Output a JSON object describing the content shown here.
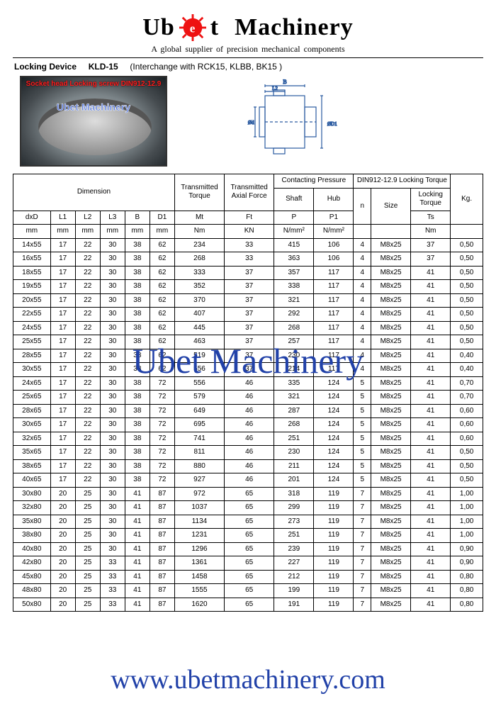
{
  "brand": {
    "left": "Ub",
    "right": "t",
    "word2": "Machinery"
  },
  "tagline": "A global supplier of precision mechanical components",
  "title": {
    "label": "Locking Device",
    "model": "KLD-15",
    "note": "(Interchange with RCK15,    KLBB,   BK15 )"
  },
  "photo_label": "Socket head Locking screw DIN912-12.9",
  "photo_wm": "Ubet Machinery",
  "watermark": "Ubet Machinery",
  "url": "www.ubetmachinery.com",
  "headers": {
    "dimension": "Dimension",
    "mt_group": "Transmitted Torque",
    "ft_group": "Transmitted Axial Force",
    "cp_group": "Contacting Pressure",
    "din_group": "DIN912-12.9 Locking Torque",
    "shaft": "Shaft",
    "hub": "Hub",
    "n": "n",
    "size": "Size",
    "lt": "Locking Torque",
    "kg": "Kg.",
    "dxd": "dxD",
    "l1": "L1",
    "l2": "L2",
    "l3": "L3",
    "b": "B",
    "d1": "D1",
    "mt": "Mt",
    "ft": "Ft",
    "p": "P",
    "p1": "P1",
    "ts": "Ts",
    "mm": "mm",
    "nm": "Nm",
    "kn": "KN",
    "nmm": "N/mm²"
  },
  "rows": [
    [
      "14x55",
      "17",
      "22",
      "30",
      "38",
      "62",
      "234",
      "33",
      "415",
      "106",
      "4",
      "M8x25",
      "37",
      "0,50"
    ],
    [
      "16x55",
      "17",
      "22",
      "30",
      "38",
      "62",
      "268",
      "33",
      "363",
      "106",
      "4",
      "M8x25",
      "37",
      "0,50"
    ],
    [
      "18x55",
      "17",
      "22",
      "30",
      "38",
      "62",
      "333",
      "37",
      "357",
      "117",
      "4",
      "M8x25",
      "41",
      "0,50"
    ],
    [
      "19x55",
      "17",
      "22",
      "30",
      "38",
      "62",
      "352",
      "37",
      "338",
      "117",
      "4",
      "M8x25",
      "41",
      "0,50"
    ],
    [
      "20x55",
      "17",
      "22",
      "30",
      "38",
      "62",
      "370",
      "37",
      "321",
      "117",
      "4",
      "M8x25",
      "41",
      "0,50"
    ],
    [
      "22x55",
      "17",
      "22",
      "30",
      "38",
      "62",
      "407",
      "37",
      "292",
      "117",
      "4",
      "M8x25",
      "41",
      "0,50"
    ],
    [
      "24x55",
      "17",
      "22",
      "30",
      "38",
      "62",
      "445",
      "37",
      "268",
      "117",
      "4",
      "M8x25",
      "41",
      "0,50"
    ],
    [
      "25x55",
      "17",
      "22",
      "30",
      "38",
      "62",
      "463",
      "37",
      "257",
      "117",
      "4",
      "M8x25",
      "41",
      "0,50"
    ],
    [
      "28x55",
      "17",
      "22",
      "30",
      "38",
      "62",
      "519",
      "37",
      "230",
      "117",
      "4",
      "M8x25",
      "41",
      "0,40"
    ],
    [
      "30x55",
      "17",
      "22",
      "30",
      "38",
      "62",
      "556",
      "37",
      "214",
      "117",
      "4",
      "M8x25",
      "41",
      "0,40"
    ],
    [
      "24x65",
      "17",
      "22",
      "30",
      "38",
      "72",
      "556",
      "46",
      "335",
      "124",
      "5",
      "M8x25",
      "41",
      "0,70"
    ],
    [
      "25x65",
      "17",
      "22",
      "30",
      "38",
      "72",
      "579",
      "46",
      "321",
      "124",
      "5",
      "M8x25",
      "41",
      "0,70"
    ],
    [
      "28x65",
      "17",
      "22",
      "30",
      "38",
      "72",
      "649",
      "46",
      "287",
      "124",
      "5",
      "M8x25",
      "41",
      "0,60"
    ],
    [
      "30x65",
      "17",
      "22",
      "30",
      "38",
      "72",
      "695",
      "46",
      "268",
      "124",
      "5",
      "M8x25",
      "41",
      "0,60"
    ],
    [
      "32x65",
      "17",
      "22",
      "30",
      "38",
      "72",
      "741",
      "46",
      "251",
      "124",
      "5",
      "M8x25",
      "41",
      "0,60"
    ],
    [
      "35x65",
      "17",
      "22",
      "30",
      "38",
      "72",
      "811",
      "46",
      "230",
      "124",
      "5",
      "M8x25",
      "41",
      "0,50"
    ],
    [
      "38x65",
      "17",
      "22",
      "30",
      "38",
      "72",
      "880",
      "46",
      "211",
      "124",
      "5",
      "M8x25",
      "41",
      "0,50"
    ],
    [
      "40x65",
      "17",
      "22",
      "30",
      "38",
      "72",
      "927",
      "46",
      "201",
      "124",
      "5",
      "M8x25",
      "41",
      "0,50"
    ],
    [
      "30x80",
      "20",
      "25",
      "30",
      "41",
      "87",
      "972",
      "65",
      "318",
      "119",
      "7",
      "M8x25",
      "41",
      "1,00"
    ],
    [
      "32x80",
      "20",
      "25",
      "30",
      "41",
      "87",
      "1037",
      "65",
      "299",
      "119",
      "7",
      "M8x25",
      "41",
      "1,00"
    ],
    [
      "35x80",
      "20",
      "25",
      "30",
      "41",
      "87",
      "1134",
      "65",
      "273",
      "119",
      "7",
      "M8x25",
      "41",
      "1,00"
    ],
    [
      "38x80",
      "20",
      "25",
      "30",
      "41",
      "87",
      "1231",
      "65",
      "251",
      "119",
      "7",
      "M8x25",
      "41",
      "1,00"
    ],
    [
      "40x80",
      "20",
      "25",
      "30",
      "41",
      "87",
      "1296",
      "65",
      "239",
      "119",
      "7",
      "M8x25",
      "41",
      "0,90"
    ],
    [
      "42x80",
      "20",
      "25",
      "33",
      "41",
      "87",
      "1361",
      "65",
      "227",
      "119",
      "7",
      "M8x25",
      "41",
      "0,90"
    ],
    [
      "45x80",
      "20",
      "25",
      "33",
      "41",
      "87",
      "1458",
      "65",
      "212",
      "119",
      "7",
      "M8x25",
      "41",
      "0,80"
    ],
    [
      "48x80",
      "20",
      "25",
      "33",
      "41",
      "87",
      "1555",
      "65",
      "199",
      "119",
      "7",
      "M8x25",
      "41",
      "0,80"
    ],
    [
      "50x80",
      "20",
      "25",
      "33",
      "41",
      "87",
      "1620",
      "65",
      "191",
      "119",
      "7",
      "M8x25",
      "41",
      "0,80"
    ]
  ],
  "colors": {
    "blue": "#2141a8",
    "diagram": "#2a5aa0",
    "red": "#e11"
  }
}
